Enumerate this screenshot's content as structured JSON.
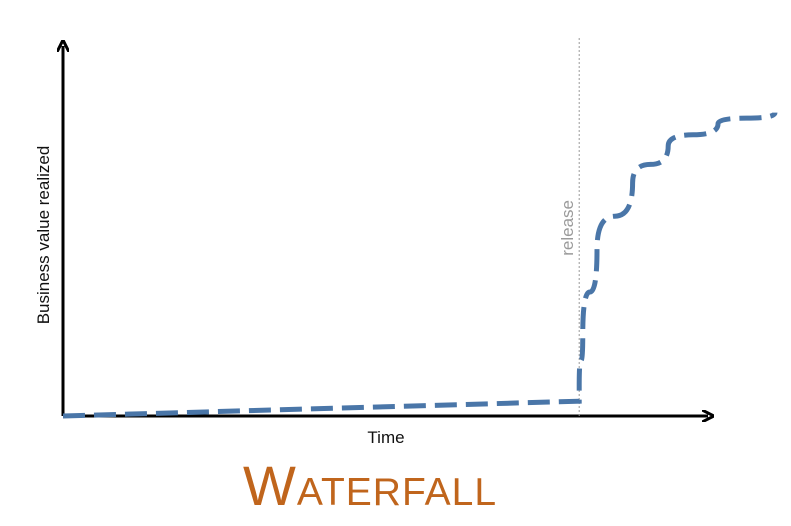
{
  "chart_data": {
    "type": "line",
    "title": "Waterfall",
    "xlabel": "Time",
    "ylabel": "Business value realized",
    "xlim": [
      0,
      100
    ],
    "ylim": [
      0,
      100
    ],
    "grid": false,
    "legend": "none",
    "annotations": [
      {
        "text": "release",
        "x": 72.5,
        "style": "vertical dotted line"
      }
    ],
    "series": [
      {
        "style": "dashed",
        "color": "#4a76a8",
        "x": [
          0,
          72.5,
          72.5,
          73,
          75,
          80,
          85,
          92,
          100
        ],
        "y": [
          0,
          4,
          8,
          22,
          45,
          63,
          73,
          79,
          82
        ]
      }
    ]
  },
  "colors": {
    "axis": "#000000",
    "series": "#4a76a8",
    "release_line": "#9a9a9a",
    "title": "#c0651c"
  }
}
